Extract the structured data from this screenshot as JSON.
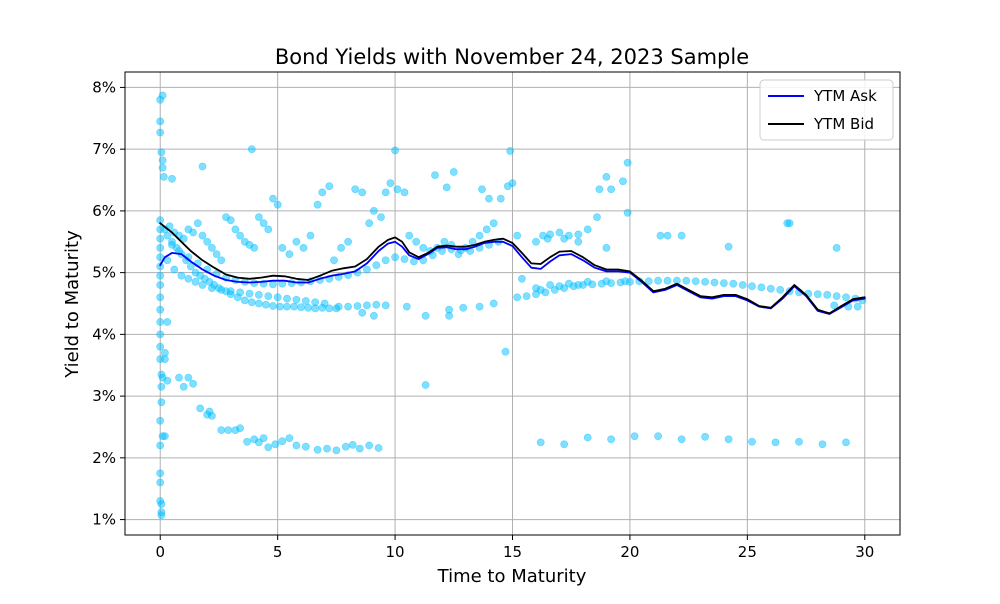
{
  "chart_data": {
    "type": "scatter",
    "title": "Bond Yields with November 24, 2023 Sample",
    "xlabel": "Time to Maturity",
    "ylabel": "Yield to Maturity",
    "xlim": [
      -1.5,
      31.5
    ],
    "ylim": [
      0.75,
      8.25
    ],
    "x_ticks": [
      0,
      5,
      10,
      15,
      20,
      25,
      30
    ],
    "x_tick_labels": [
      "0",
      "5",
      "10",
      "15",
      "20",
      "25",
      "30"
    ],
    "y_ticks": [
      1,
      2,
      3,
      4,
      5,
      6,
      7,
      8
    ],
    "y_tick_labels": [
      "1%",
      "2%",
      "3%",
      "4%",
      "5%",
      "6%",
      "7%",
      "8%"
    ],
    "grid": true,
    "legend_position": "upper right",
    "colors": {
      "scatter": "#00bfff",
      "ask": "#0000ff",
      "bid": "#000000"
    },
    "legend": [
      "YTM Ask",
      "YTM Bid"
    ],
    "scatter_points": [
      [
        0.0,
        7.8
      ],
      [
        0.1,
        7.87
      ],
      [
        0.0,
        7.45
      ],
      [
        0.0,
        7.27
      ],
      [
        0.05,
        6.95
      ],
      [
        0.1,
        6.82
      ],
      [
        0.1,
        6.7
      ],
      [
        0.15,
        6.55
      ],
      [
        0.5,
        6.52
      ],
      [
        0.0,
        5.85
      ],
      [
        0.0,
        5.7
      ],
      [
        0.0,
        5.55
      ],
      [
        0.0,
        5.4
      ],
      [
        0.0,
        5.25
      ],
      [
        0.0,
        5.1
      ],
      [
        0.0,
        4.95
      ],
      [
        0.0,
        4.8
      ],
      [
        0.0,
        4.6
      ],
      [
        0.0,
        4.4
      ],
      [
        0.0,
        4.2
      ],
      [
        0.0,
        4.0
      ],
      [
        0.0,
        3.8
      ],
      [
        0.0,
        3.6
      ],
      [
        0.05,
        3.35
      ],
      [
        0.05,
        3.15
      ],
      [
        0.05,
        2.9
      ],
      [
        0.0,
        2.6
      ],
      [
        0.0,
        2.2
      ],
      [
        0.0,
        1.75
      ],
      [
        0.0,
        1.6
      ],
      [
        0.0,
        1.3
      ],
      [
        0.05,
        1.25
      ],
      [
        0.05,
        1.12
      ],
      [
        0.05,
        1.07
      ],
      [
        0.1,
        3.3
      ],
      [
        0.3,
        3.25
      ],
      [
        0.1,
        2.35
      ],
      [
        0.2,
        2.35
      ],
      [
        0.3,
        4.2
      ],
      [
        0.2,
        3.7
      ],
      [
        0.2,
        3.6
      ],
      [
        0.8,
        3.3
      ],
      [
        1.0,
        3.15
      ],
      [
        1.2,
        3.3
      ],
      [
        1.4,
        3.2
      ],
      [
        1.7,
        2.8
      ],
      [
        2.0,
        2.7
      ],
      [
        2.1,
        2.75
      ],
      [
        2.2,
        2.68
      ],
      [
        2.6,
        2.45
      ],
      [
        2.9,
        2.45
      ],
      [
        3.2,
        2.45
      ],
      [
        3.4,
        2.48
      ],
      [
        3.7,
        2.26
      ],
      [
        4.0,
        2.3
      ],
      [
        4.2,
        2.25
      ],
      [
        4.4,
        2.32
      ],
      [
        4.6,
        2.17
      ],
      [
        4.9,
        2.22
      ],
      [
        5.2,
        2.27
      ],
      [
        5.5,
        2.32
      ],
      [
        5.8,
        2.2
      ],
      [
        6.2,
        2.18
      ],
      [
        6.7,
        2.13
      ],
      [
        7.1,
        2.15
      ],
      [
        7.5,
        2.12
      ],
      [
        7.9,
        2.18
      ],
      [
        8.2,
        2.21
      ],
      [
        8.5,
        2.15
      ],
      [
        8.9,
        2.2
      ],
      [
        9.3,
        2.16
      ],
      [
        1.8,
        6.72
      ],
      [
        3.9,
        7.0
      ],
      [
        10.0,
        6.98
      ],
      [
        12.5,
        6.63
      ],
      [
        14.9,
        6.97
      ],
      [
        11.3,
        3.18
      ],
      [
        14.7,
        3.72
      ],
      [
        0.3,
        5.6
      ],
      [
        0.5,
        5.5
      ],
      [
        0.7,
        5.4
      ],
      [
        0.9,
        5.3
      ],
      [
        1.1,
        5.2
      ],
      [
        1.3,
        5.1
      ],
      [
        1.5,
        5.0
      ],
      [
        1.7,
        4.95
      ],
      [
        1.9,
        4.9
      ],
      [
        2.1,
        4.85
      ],
      [
        2.3,
        4.8
      ],
      [
        2.5,
        4.75
      ],
      [
        2.8,
        4.7
      ],
      [
        3.0,
        4.65
      ],
      [
        3.3,
        4.6
      ],
      [
        3.6,
        4.55
      ],
      [
        3.9,
        4.52
      ],
      [
        4.2,
        4.5
      ],
      [
        4.5,
        4.48
      ],
      [
        4.8,
        4.46
      ],
      [
        5.1,
        4.45
      ],
      [
        5.4,
        4.45
      ],
      [
        5.7,
        4.45
      ],
      [
        6.0,
        4.44
      ],
      [
        6.3,
        4.43
      ],
      [
        6.6,
        4.42
      ],
      [
        6.9,
        4.43
      ],
      [
        7.2,
        4.42
      ],
      [
        7.5,
        4.42
      ],
      [
        0.3,
        5.2
      ],
      [
        0.6,
        5.05
      ],
      [
        0.9,
        4.95
      ],
      [
        1.2,
        4.9
      ],
      [
        1.5,
        4.85
      ],
      [
        1.8,
        4.8
      ],
      [
        2.2,
        4.75
      ],
      [
        2.6,
        4.72
      ],
      [
        3.0,
        4.7
      ],
      [
        3.4,
        4.68
      ],
      [
        3.8,
        4.66
      ],
      [
        4.2,
        4.64
      ],
      [
        4.6,
        4.62
      ],
      [
        5.0,
        4.6
      ],
      [
        5.4,
        4.58
      ],
      [
        5.8,
        4.56
      ],
      [
        6.2,
        4.54
      ],
      [
        6.6,
        4.52
      ],
      [
        7.0,
        4.5
      ],
      [
        7.6,
        4.45
      ],
      [
        8.0,
        4.45
      ],
      [
        8.4,
        4.46
      ],
      [
        8.8,
        4.47
      ],
      [
        9.2,
        4.48
      ],
      [
        9.6,
        4.47
      ],
      [
        10.5,
        4.45
      ],
      [
        11.3,
        4.3
      ],
      [
        12.3,
        4.4
      ],
      [
        12.9,
        4.43
      ],
      [
        13.6,
        4.45
      ],
      [
        14.2,
        4.5
      ],
      [
        8.6,
        4.35
      ],
      [
        9.1,
        4.3
      ],
      [
        12.3,
        4.3
      ],
      [
        0.2,
        5.7
      ],
      [
        0.4,
        5.75
      ],
      [
        0.6,
        5.65
      ],
      [
        0.8,
        5.6
      ],
      [
        1.0,
        5.55
      ],
      [
        1.2,
        5.7
      ],
      [
        1.4,
        5.65
      ],
      [
        1.6,
        5.8
      ],
      [
        1.8,
        5.6
      ],
      [
        2.0,
        5.5
      ],
      [
        2.2,
        5.4
      ],
      [
        2.4,
        5.3
      ],
      [
        2.6,
        5.2
      ],
      [
        2.8,
        5.9
      ],
      [
        3.0,
        5.85
      ],
      [
        3.2,
        5.7
      ],
      [
        3.4,
        5.6
      ],
      [
        3.6,
        5.5
      ],
      [
        3.8,
        5.45
      ],
      [
        4.0,
        5.4
      ],
      [
        4.2,
        5.9
      ],
      [
        4.4,
        5.8
      ],
      [
        4.6,
        5.7
      ],
      [
        4.8,
        6.2
      ],
      [
        5.0,
        6.1
      ],
      [
        5.2,
        5.4
      ],
      [
        5.5,
        5.3
      ],
      [
        5.8,
        5.5
      ],
      [
        6.1,
        5.4
      ],
      [
        6.4,
        5.6
      ],
      [
        6.7,
        6.1
      ],
      [
        6.9,
        6.3
      ],
      [
        7.2,
        6.4
      ],
      [
        7.4,
        5.2
      ],
      [
        7.7,
        5.4
      ],
      [
        8.0,
        5.5
      ],
      [
        8.3,
        6.35
      ],
      [
        8.6,
        6.3
      ],
      [
        8.9,
        5.8
      ],
      [
        9.1,
        6.0
      ],
      [
        9.4,
        5.9
      ],
      [
        9.6,
        6.3
      ],
      [
        9.8,
        6.45
      ],
      [
        10.1,
        6.35
      ],
      [
        10.4,
        6.3
      ],
      [
        10.6,
        5.6
      ],
      [
        10.9,
        5.5
      ],
      [
        11.2,
        5.4
      ],
      [
        11.5,
        5.35
      ],
      [
        11.8,
        5.4
      ],
      [
        12.1,
        5.5
      ],
      [
        12.4,
        5.45
      ],
      [
        12.7,
        5.3
      ],
      [
        13.0,
        5.4
      ],
      [
        13.3,
        5.5
      ],
      [
        13.6,
        5.6
      ],
      [
        13.9,
        5.7
      ],
      [
        14.2,
        5.8
      ],
      [
        14.5,
        6.2
      ],
      [
        14.8,
        6.4
      ],
      [
        15.0,
        6.45
      ],
      [
        15.2,
        5.6
      ],
      [
        11.7,
        6.58
      ],
      [
        12.2,
        6.38
      ],
      [
        13.7,
        6.35
      ],
      [
        14.0,
        6.2
      ],
      [
        0.5,
        5.45
      ],
      [
        0.8,
        5.35
      ],
      [
        1.2,
        5.25
      ],
      [
        1.6,
        5.15
      ],
      [
        2.0,
        5.05
      ],
      [
        2.4,
        4.98
      ],
      [
        2.8,
        4.92
      ],
      [
        3.2,
        4.88
      ],
      [
        3.6,
        4.85
      ],
      [
        4.0,
        4.83
      ],
      [
        4.4,
        4.82
      ],
      [
        4.8,
        4.81
      ],
      [
        5.2,
        4.82
      ],
      [
        5.6,
        4.83
      ],
      [
        6.0,
        4.84
      ],
      [
        6.4,
        4.86
      ],
      [
        6.8,
        4.88
      ],
      [
        7.2,
        4.9
      ],
      [
        7.6,
        4.93
      ],
      [
        8.0,
        4.96
      ],
      [
        8.4,
        5.0
      ],
      [
        8.8,
        5.05
      ],
      [
        9.2,
        5.12
      ],
      [
        9.6,
        5.2
      ],
      [
        10.0,
        5.25
      ],
      [
        10.4,
        5.22
      ],
      [
        10.8,
        5.18
      ],
      [
        11.2,
        5.2
      ],
      [
        11.6,
        5.28
      ],
      [
        12.0,
        5.35
      ],
      [
        12.4,
        5.38
      ],
      [
        12.8,
        5.36
      ],
      [
        13.2,
        5.35
      ],
      [
        13.6,
        5.4
      ],
      [
        14.0,
        5.45
      ],
      [
        14.4,
        5.5
      ],
      [
        15.4,
        4.9
      ],
      [
        15.2,
        4.6
      ],
      [
        15.6,
        4.62
      ],
      [
        16.0,
        4.65
      ],
      [
        16.4,
        4.68
      ],
      [
        16.8,
        4.72
      ],
      [
        17.2,
        4.75
      ],
      [
        17.6,
        4.78
      ],
      [
        18.0,
        4.8
      ],
      [
        18.4,
        4.81
      ],
      [
        18.8,
        4.82
      ],
      [
        19.2,
        4.83
      ],
      [
        19.6,
        4.84
      ],
      [
        20.0,
        4.85
      ],
      [
        20.4,
        4.86
      ],
      [
        20.8,
        4.86
      ],
      [
        21.2,
        4.87
      ],
      [
        21.6,
        4.87
      ],
      [
        22.0,
        4.87
      ],
      [
        22.4,
        4.87
      ],
      [
        22.8,
        4.86
      ],
      [
        23.2,
        4.85
      ],
      [
        23.6,
        4.84
      ],
      [
        24.0,
        4.83
      ],
      [
        24.4,
        4.82
      ],
      [
        24.8,
        4.8
      ],
      [
        25.2,
        4.78
      ],
      [
        25.6,
        4.76
      ],
      [
        26.0,
        4.74
      ],
      [
        26.4,
        4.72
      ],
      [
        26.8,
        4.7
      ],
      [
        27.2,
        4.68
      ],
      [
        27.6,
        4.66
      ],
      [
        28.0,
        4.65
      ],
      [
        28.4,
        4.64
      ],
      [
        28.8,
        4.62
      ],
      [
        29.2,
        4.6
      ],
      [
        29.6,
        4.58
      ],
      [
        29.9,
        4.55
      ],
      [
        29.3,
        4.45
      ],
      [
        29.7,
        4.45
      ],
      [
        28.7,
        4.47
      ],
      [
        16.0,
        4.75
      ],
      [
        16.6,
        4.8
      ],
      [
        17.4,
        4.82
      ],
      [
        18.2,
        4.85
      ],
      [
        19.0,
        4.86
      ],
      [
        19.8,
        4.86
      ],
      [
        16.3,
        5.6
      ],
      [
        16.6,
        5.62
      ],
      [
        17.0,
        5.65
      ],
      [
        17.4,
        5.6
      ],
      [
        17.8,
        5.62
      ],
      [
        18.2,
        5.7
      ],
      [
        18.6,
        5.9
      ],
      [
        16.0,
        5.5
      ],
      [
        16.5,
        5.55
      ],
      [
        17.2,
        5.55
      ],
      [
        17.8,
        5.5
      ],
      [
        19.0,
        5.4
      ],
      [
        18.7,
        6.35
      ],
      [
        19.0,
        6.55
      ],
      [
        19.2,
        6.35
      ],
      [
        19.7,
        6.48
      ],
      [
        19.9,
        6.78
      ],
      [
        19.9,
        5.97
      ],
      [
        21.3,
        5.6
      ],
      [
        21.6,
        5.6
      ],
      [
        22.2,
        5.6
      ],
      [
        24.2,
        5.42
      ],
      [
        26.7,
        5.8
      ],
      [
        26.8,
        5.8
      ],
      [
        28.8,
        5.4
      ],
      [
        16.2,
        2.25
      ],
      [
        17.2,
        2.22
      ],
      [
        18.2,
        2.33
      ],
      [
        19.2,
        2.3
      ],
      [
        20.2,
        2.35
      ],
      [
        21.2,
        2.35
      ],
      [
        22.2,
        2.3
      ],
      [
        23.2,
        2.34
      ],
      [
        24.2,
        2.3
      ],
      [
        25.2,
        2.26
      ],
      [
        26.2,
        2.25
      ],
      [
        27.2,
        2.26
      ],
      [
        28.2,
        2.22
      ],
      [
        29.2,
        2.25
      ],
      [
        16.2,
        4.72
      ],
      [
        17.0,
        4.78
      ],
      [
        17.8,
        4.8
      ]
    ],
    "series": [
      {
        "name": "YTM Ask",
        "x": [
          0.0,
          0.2,
          0.5,
          0.9,
          1.3,
          1.8,
          2.3,
          2.8,
          3.3,
          3.8,
          4.3,
          4.8,
          5.3,
          5.8,
          6.3,
          6.8,
          7.3,
          7.8,
          8.3,
          8.8,
          9.3,
          9.7,
          10.0,
          10.3,
          10.6,
          11.0,
          11.4,
          11.8,
          12.2,
          12.6,
          13.0,
          13.4,
          13.8,
          14.2,
          14.6,
          15.0,
          15.4,
          15.8,
          16.2,
          16.6,
          17.0,
          17.5,
          18.0,
          18.5,
          19.0,
          19.5,
          20.0,
          20.5,
          21.0,
          21.5,
          22.0,
          22.5,
          23.0,
          23.5,
          24.0,
          24.5,
          25.0,
          25.5,
          26.0,
          26.5,
          27.0,
          27.5,
          28.0,
          28.5,
          29.0,
          29.5,
          30.0
        ],
        "y": [
          5.12,
          5.25,
          5.32,
          5.3,
          5.18,
          5.05,
          4.95,
          4.88,
          4.85,
          4.84,
          4.85,
          4.87,
          4.87,
          4.84,
          4.84,
          4.9,
          4.95,
          4.98,
          5.02,
          5.15,
          5.35,
          5.47,
          5.5,
          5.42,
          5.28,
          5.22,
          5.3,
          5.4,
          5.41,
          5.38,
          5.38,
          5.42,
          5.48,
          5.5,
          5.5,
          5.43,
          5.25,
          5.08,
          5.06,
          5.18,
          5.28,
          5.3,
          5.2,
          5.08,
          5.02,
          5.02,
          5.0,
          4.85,
          4.68,
          4.72,
          4.8,
          4.7,
          4.6,
          4.58,
          4.62,
          4.62,
          4.55,
          4.45,
          4.42,
          4.58,
          4.78,
          4.62,
          4.38,
          4.33,
          4.44,
          4.55,
          4.58
        ]
      },
      {
        "name": "YTM Bid",
        "x": [
          0.0,
          0.2,
          0.5,
          0.9,
          1.3,
          1.8,
          2.3,
          2.8,
          3.3,
          3.8,
          4.3,
          4.8,
          5.3,
          5.8,
          6.3,
          6.8,
          7.3,
          7.8,
          8.3,
          8.8,
          9.3,
          9.7,
          10.0,
          10.3,
          10.6,
          11.0,
          11.4,
          11.8,
          12.2,
          12.6,
          13.0,
          13.4,
          13.8,
          14.2,
          14.6,
          15.0,
          15.4,
          15.8,
          16.2,
          16.6,
          17.0,
          17.5,
          18.0,
          18.5,
          19.0,
          19.5,
          20.0,
          20.5,
          21.0,
          21.5,
          22.0,
          22.5,
          23.0,
          23.5,
          24.0,
          24.5,
          25.0,
          25.5,
          26.0,
          26.5,
          27.0,
          27.5,
          28.0,
          28.5,
          29.0,
          29.5,
          30.0
        ],
        "y": [
          5.8,
          5.74,
          5.65,
          5.5,
          5.35,
          5.2,
          5.08,
          4.97,
          4.92,
          4.9,
          4.92,
          4.95,
          4.94,
          4.9,
          4.88,
          4.95,
          5.03,
          5.07,
          5.1,
          5.22,
          5.42,
          5.53,
          5.57,
          5.5,
          5.33,
          5.25,
          5.32,
          5.42,
          5.44,
          5.42,
          5.42,
          5.45,
          5.5,
          5.53,
          5.55,
          5.48,
          5.32,
          5.15,
          5.14,
          5.25,
          5.34,
          5.35,
          5.25,
          5.12,
          5.05,
          5.05,
          5.02,
          4.87,
          4.7,
          4.74,
          4.82,
          4.72,
          4.62,
          4.6,
          4.64,
          4.64,
          4.57,
          4.46,
          4.43,
          4.6,
          4.8,
          4.64,
          4.4,
          4.34,
          4.46,
          4.57,
          4.6
        ]
      }
    ]
  }
}
